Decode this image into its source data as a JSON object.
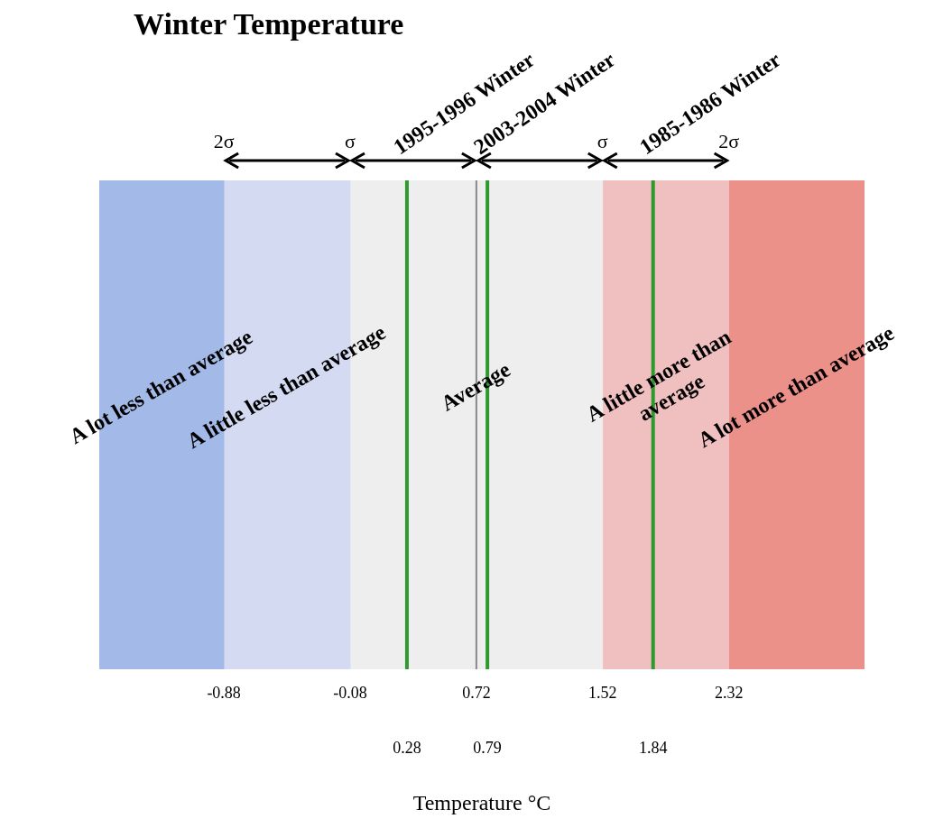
{
  "chart_data": {
    "type": "bar",
    "orientation": "horizontal",
    "title": "Winter Temperature",
    "xlabel": "Temperature °C",
    "xlim": [
      -1.67,
      3.18
    ],
    "xticks": [
      -0.88,
      -0.08,
      0.72,
      1.52,
      2.32
    ],
    "x2lim": [
      -1.67,
      3.18
    ],
    "x2ticks": [
      0.28,
      0.79,
      1.84
    ],
    "categories": [
      null
    ],
    "series": [
      {
        "name": "A lot less than average",
        "color": "#a3b9e8",
        "values": [
          0.79
        ],
        "base": [
          -1.67
        ]
      },
      {
        "name": "A little less than average",
        "color": "#d3daf2",
        "values": [
          0.8
        ],
        "base": [
          -0.88
        ]
      },
      {
        "name": "Average",
        "color": "#eeeeee",
        "values": [
          1.6
        ],
        "base": [
          -0.08
        ]
      },
      {
        "name": "A little more than average",
        "color": "#f0c0c0",
        "values": [
          0.8
        ],
        "base": [
          1.52
        ]
      },
      {
        "name": "A lot more than average",
        "color": "#ec908a",
        "values": [
          0.86
        ],
        "base": [
          2.32
        ]
      }
    ],
    "ref_lines": [
      {
        "axis": "x",
        "value": 0.72,
        "label": null,
        "color": "#888888"
      },
      {
        "axis": "x",
        "value": 0.28,
        "label": "1995-1996 Winter",
        "color": "#2e9a2e"
      },
      {
        "axis": "x",
        "value": 0.79,
        "label": "2003-2004 Winter",
        "color": "#2e9a2e"
      },
      {
        "axis": "x",
        "value": 1.84,
        "label": "1985-1986 Winter",
        "color": "#2e9a2e"
      }
    ],
    "annotations": [
      "2σ",
      "σ",
      "σ",
      "2σ"
    ]
  }
}
